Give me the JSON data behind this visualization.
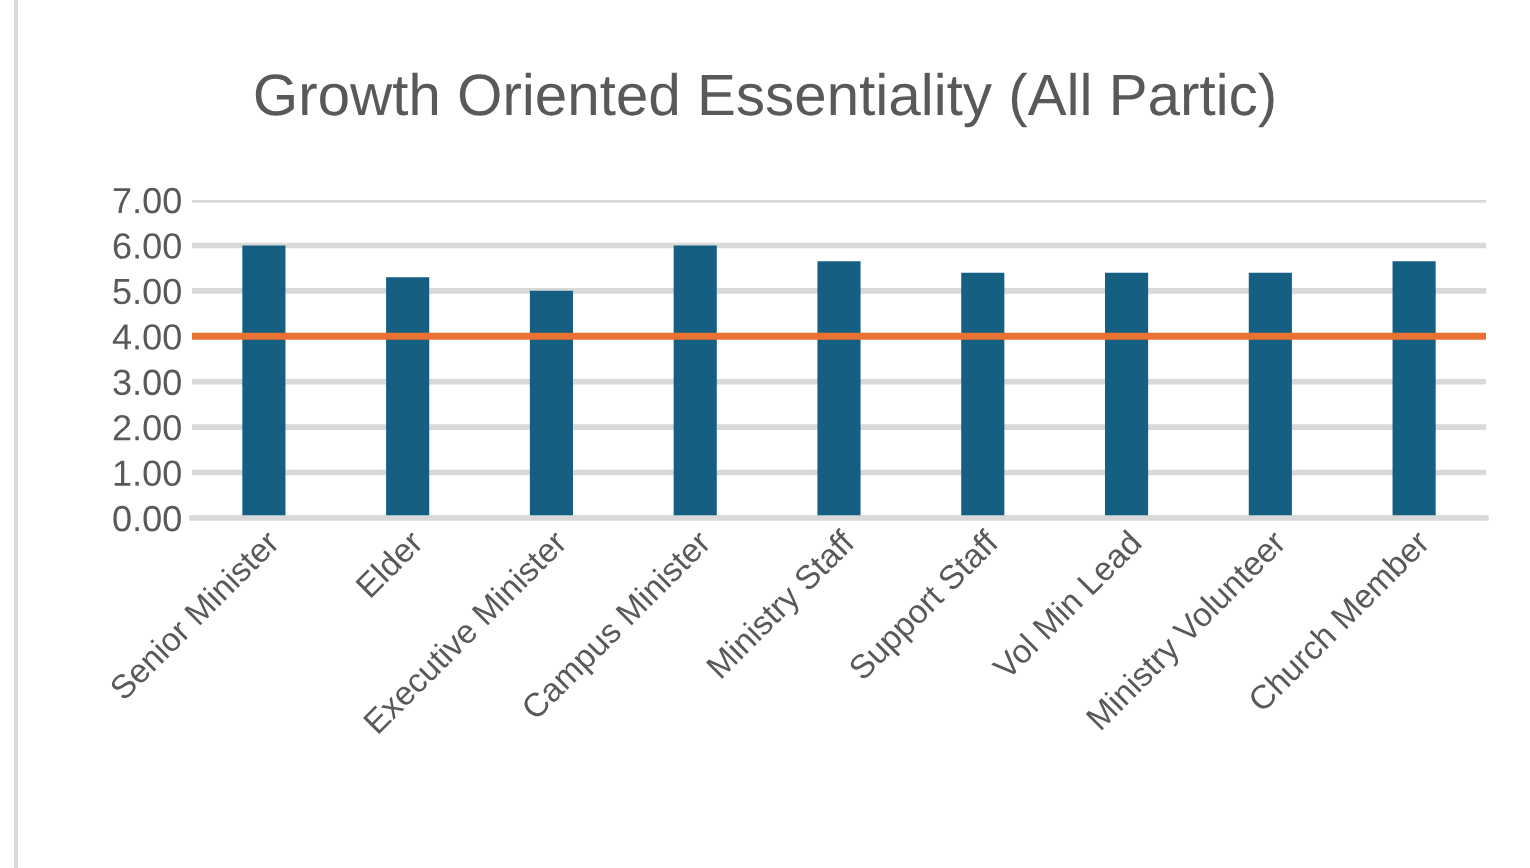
{
  "chart_data": {
    "type": "bar",
    "title": "Growth Oriented Essentiality (All Partic)",
    "categories": [
      "Senior Minister",
      "Elder",
      "Executive Minister",
      "Campus Minister",
      "Ministry Staff",
      "Support Staff",
      "Vol Min Lead",
      "Ministry Volunteer",
      "Church Member"
    ],
    "values": [
      6.0,
      5.3,
      5.0,
      6.0,
      5.65,
      5.4,
      5.4,
      5.4,
      5.65
    ],
    "color": "#155f83",
    "ylim": [
      0,
      7
    ],
    "yticks": [
      {
        "value": 0,
        "label": "0.00"
      },
      {
        "value": 1,
        "label": "1.00"
      },
      {
        "value": 2,
        "label": "2.00"
      },
      {
        "value": 3,
        "label": "3.00"
      },
      {
        "value": 4,
        "label": "4.00"
      },
      {
        "value": 5,
        "label": "5.00"
      },
      {
        "value": 6,
        "label": "6.00"
      },
      {
        "value": 7,
        "label": "7.00"
      }
    ],
    "grid": "y",
    "ref_lines": [
      {
        "axis": "y",
        "value": 4,
        "color": "#e97132",
        "line_style": "solid"
      }
    ]
  }
}
